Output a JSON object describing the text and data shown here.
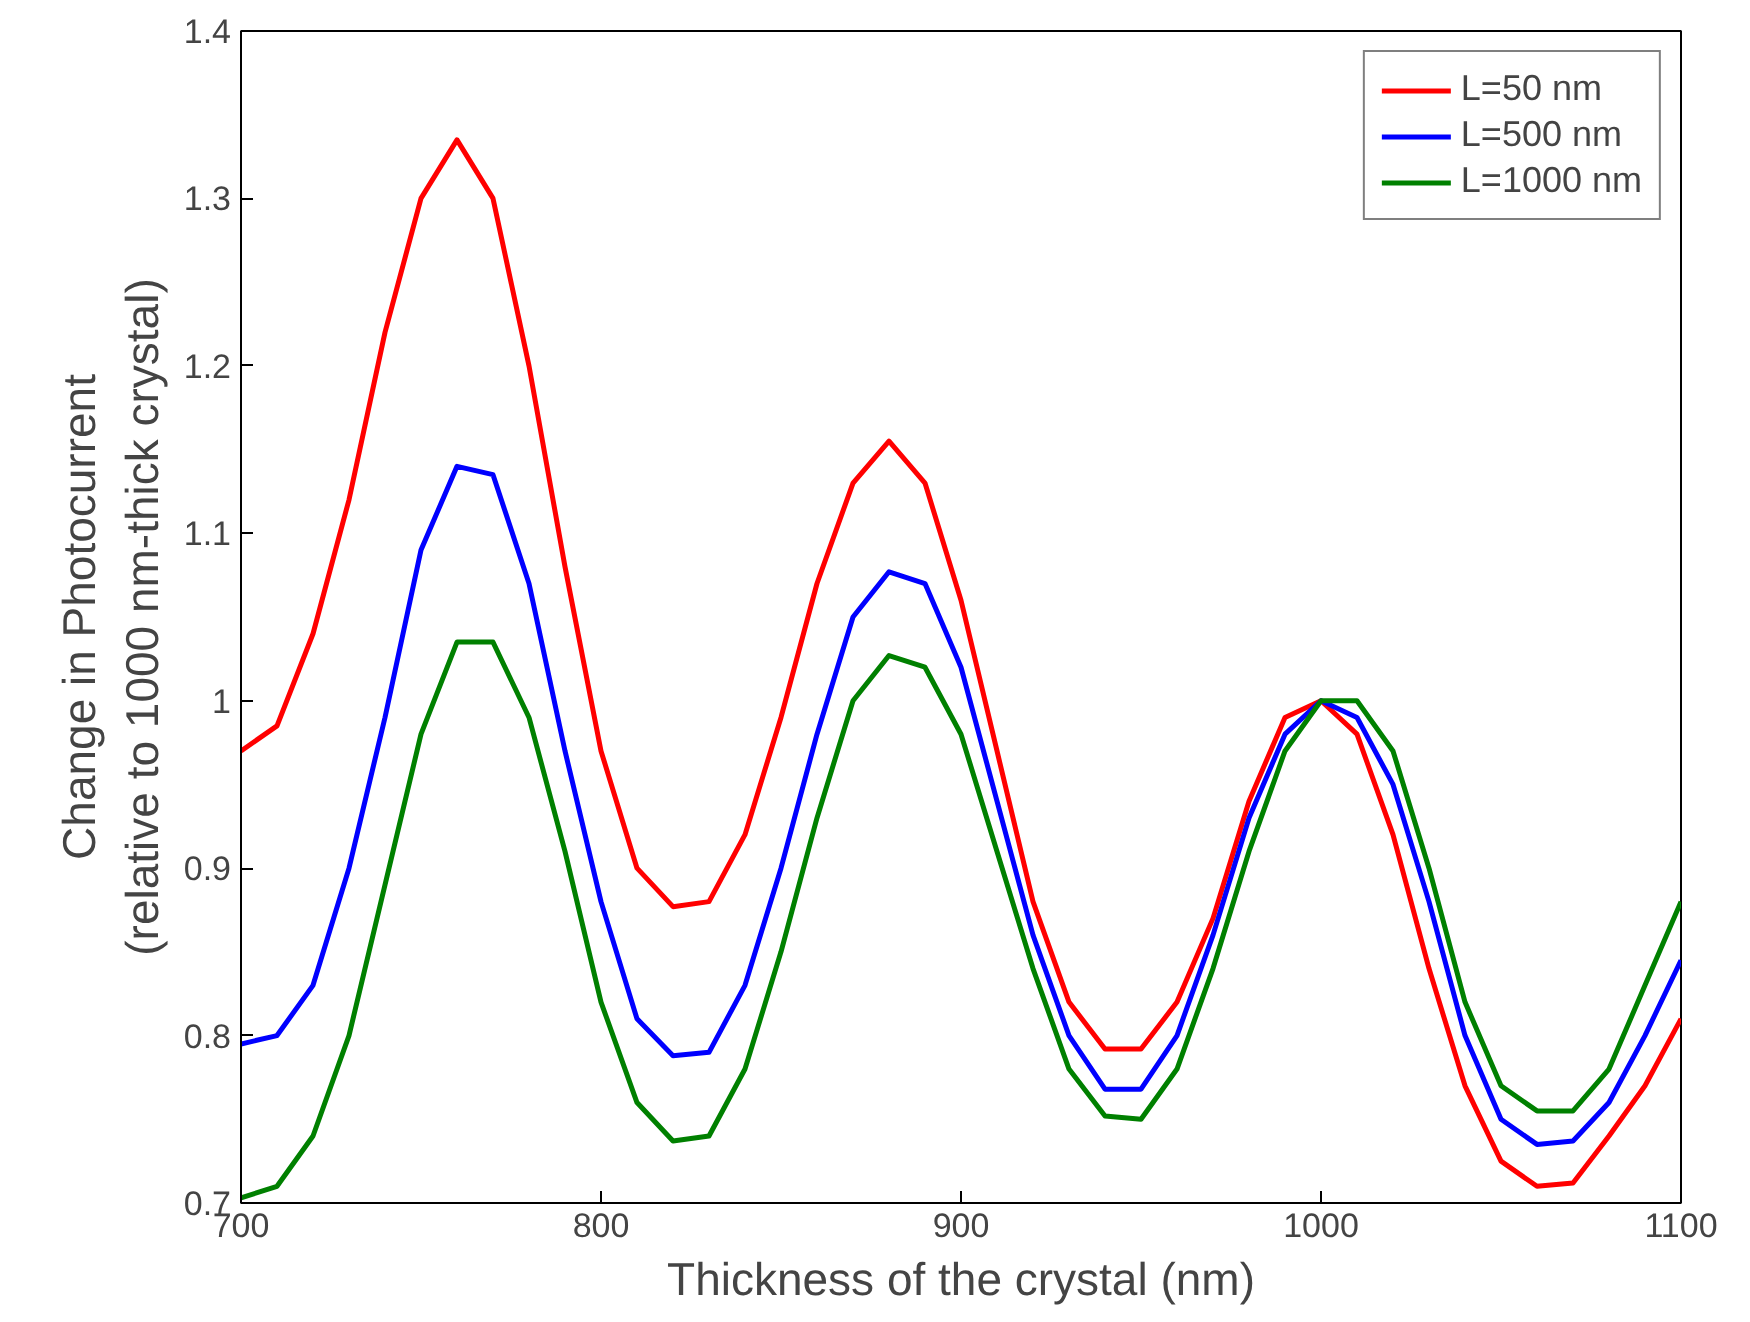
{
  "chart_data": {
    "type": "line",
    "xlabel": "Thickness of the crystal (nm)",
    "ylabel": "Change in Photocurrent\n(relative to 1000 nm-thick crystal)",
    "x": [
      700,
      710,
      720,
      730,
      740,
      750,
      760,
      770,
      780,
      790,
      800,
      810,
      820,
      830,
      840,
      850,
      860,
      870,
      880,
      890,
      900,
      910,
      920,
      930,
      940,
      950,
      960,
      970,
      980,
      990,
      1000,
      1010,
      1020,
      1030,
      1040,
      1050,
      1060,
      1070,
      1080,
      1090,
      1100
    ],
    "series": [
      {
        "name": "L=50 nm",
        "color": "#ff0000",
        "values": [
          0.97,
          0.985,
          1.04,
          1.12,
          1.22,
          1.3,
          1.335,
          1.3,
          1.2,
          1.08,
          0.97,
          0.9,
          0.877,
          0.88,
          0.92,
          0.99,
          1.07,
          1.13,
          1.155,
          1.13,
          1.06,
          0.97,
          0.88,
          0.82,
          0.792,
          0.792,
          0.82,
          0.87,
          0.94,
          0.99,
          1.0,
          0.98,
          0.92,
          0.84,
          0.77,
          0.725,
          0.71,
          0.712,
          0.74,
          0.77,
          0.81
        ]
      },
      {
        "name": "L=500 nm",
        "color": "#0000ff",
        "values": [
          0.795,
          0.8,
          0.83,
          0.9,
          0.99,
          1.09,
          1.14,
          1.135,
          1.07,
          0.97,
          0.88,
          0.81,
          0.788,
          0.79,
          0.83,
          0.9,
          0.98,
          1.05,
          1.077,
          1.07,
          1.02,
          0.94,
          0.86,
          0.8,
          0.768,
          0.768,
          0.8,
          0.86,
          0.93,
          0.98,
          1.0,
          0.99,
          0.95,
          0.88,
          0.8,
          0.75,
          0.735,
          0.737,
          0.76,
          0.8,
          0.845
        ]
      },
      {
        "name": "L=1000 nm",
        "color": "#008000",
        "values": [
          0.703,
          0.71,
          0.74,
          0.8,
          0.89,
          0.98,
          1.035,
          1.035,
          0.99,
          0.91,
          0.82,
          0.76,
          0.737,
          0.74,
          0.78,
          0.85,
          0.93,
          1.0,
          1.027,
          1.02,
          0.98,
          0.91,
          0.84,
          0.78,
          0.752,
          0.75,
          0.78,
          0.84,
          0.91,
          0.97,
          1.0,
          1.0,
          0.97,
          0.9,
          0.82,
          0.77,
          0.755,
          0.755,
          0.78,
          0.83,
          0.88
        ]
      }
    ],
    "xlim": [
      700,
      1100
    ],
    "xticks": [
      700,
      800,
      900,
      1000,
      1100
    ],
    "ylim": [
      0.7,
      1.4
    ],
    "yticks": [
      0.7,
      0.8,
      0.9,
      1,
      1.1,
      1.2,
      1.3,
      1.4
    ],
    "grid": false,
    "legend": "top right",
    "marker": "none",
    "line_style": "solid"
  }
}
